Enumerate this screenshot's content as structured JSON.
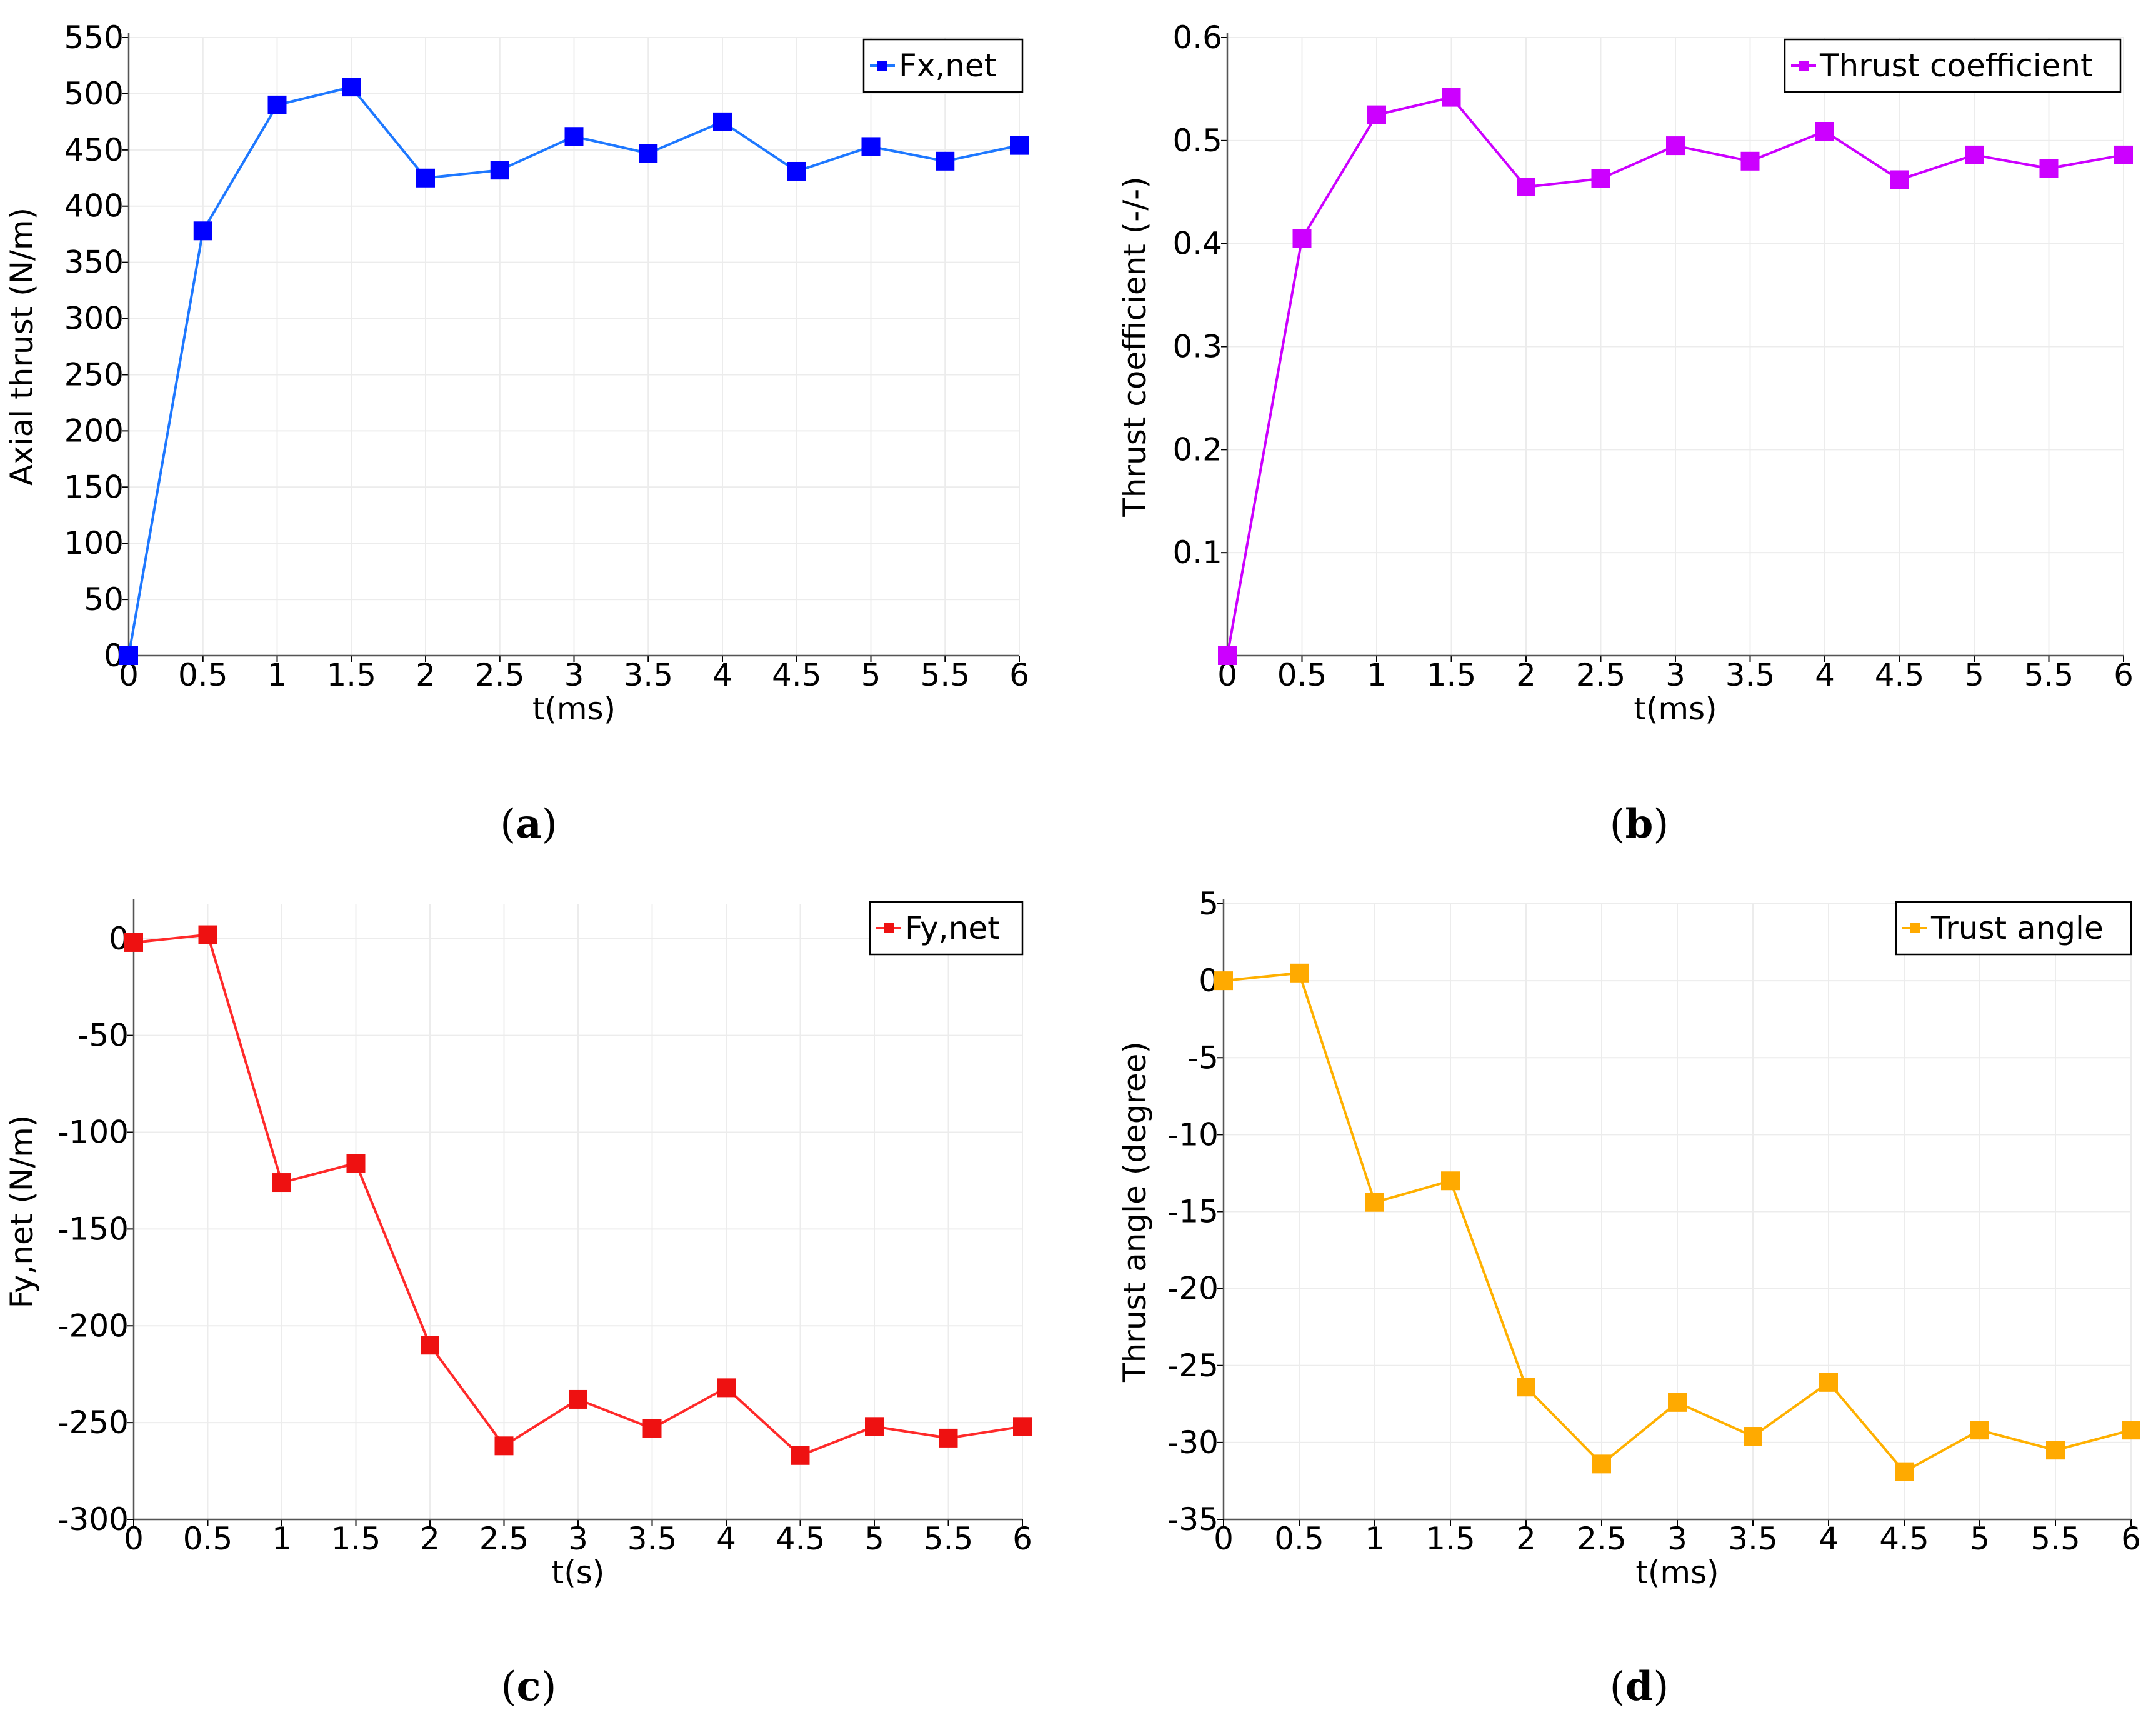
{
  "chart_data": [
    {
      "type": "line",
      "panel": "a",
      "caption": {
        "open": "(",
        "letter": "a",
        "close": ")"
      },
      "xlabel": "t(ms)",
      "ylabel": "Axial thrust (N/m)",
      "xlim": [
        0,
        6
      ],
      "ylim": [
        0,
        550
      ],
      "x_ticks": [
        "0",
        "0.5",
        "1",
        "1.5",
        "2",
        "2.5",
        "3",
        "3.5",
        "4",
        "4.5",
        "5",
        "5.5",
        "6"
      ],
      "y_ticks": [
        {
          "value": 0,
          "label": "0"
        },
        {
          "value": 50,
          "label": "50"
        },
        {
          "value": 100,
          "label": "100"
        },
        {
          "value": 150,
          "label": "150"
        },
        {
          "value": 200,
          "label": "200"
        },
        {
          "value": 250,
          "label": "250"
        },
        {
          "value": 300,
          "label": "300"
        },
        {
          "value": 350,
          "label": "350"
        },
        {
          "value": 400,
          "label": "400"
        },
        {
          "value": 450,
          "label": "450"
        },
        {
          "value": 500,
          "label": "500"
        },
        {
          "value": 550,
          "label": "550"
        }
      ],
      "grid": true,
      "legend_position": "top-right",
      "series": [
        {
          "name": "Fx,net",
          "color": "#0000ff",
          "line_color": "#1e78ff",
          "x": [
            0,
            0.5,
            1,
            1.5,
            2,
            2.5,
            3,
            3.5,
            4,
            4.5,
            5,
            5.5,
            6
          ],
          "values": [
            0,
            378,
            490,
            506,
            425,
            432,
            462,
            447,
            475,
            431,
            453,
            440,
            454
          ]
        }
      ]
    },
    {
      "type": "line",
      "panel": "b",
      "caption": {
        "open": "(",
        "letter": "b",
        "close": ")"
      },
      "xlabel": "t(ms)",
      "ylabel": "Thrust coefficient (-/-)",
      "xlim": [
        0,
        6
      ],
      "ylim": [
        0,
        0.6
      ],
      "x_ticks": [
        "0",
        "0.5",
        "1",
        "1.5",
        "2",
        "2.5",
        "3",
        "3.5",
        "4",
        "4.5",
        "5",
        "5.5",
        "6"
      ],
      "y_ticks": [
        {
          "value": 0.1,
          "label": "0.1"
        },
        {
          "value": 0.2,
          "label": "0.2"
        },
        {
          "value": 0.3,
          "label": "0.3"
        },
        {
          "value": 0.4,
          "label": "0.4"
        },
        {
          "value": 0.5,
          "label": "0.5"
        },
        {
          "value": 0.6,
          "label": "0.6"
        }
      ],
      "grid": true,
      "legend_position": "top-right",
      "series": [
        {
          "name": "Thrust coefficient",
          "color": "#cc00ff",
          "line_color": "#cc00ff",
          "x": [
            0,
            0.5,
            1,
            1.5,
            2,
            2.5,
            3,
            3.5,
            4,
            4.5,
            5,
            5.5,
            6
          ],
          "values": [
            0,
            0.405,
            0.525,
            0.542,
            0.455,
            0.463,
            0.495,
            0.48,
            0.509,
            0.462,
            0.486,
            0.473,
            0.486
          ]
        }
      ]
    },
    {
      "type": "line",
      "panel": "c",
      "caption": {
        "open": "(",
        "letter": "c",
        "close": ")"
      },
      "xlabel": "t(s)",
      "ylabel": "Fy,net (N/m)",
      "xlim": [
        0,
        6
      ],
      "ylim": [
        -300,
        18
      ],
      "x_ticks": [
        "0",
        "0.5",
        "1",
        "1.5",
        "2",
        "2.5",
        "3",
        "3.5",
        "4",
        "4.5",
        "5",
        "5.5",
        "6"
      ],
      "y_ticks": [
        {
          "value": 0,
          "label": "0"
        },
        {
          "value": -50,
          "label": "-50"
        },
        {
          "value": -100,
          "label": "-100"
        },
        {
          "value": -150,
          "label": "-150"
        },
        {
          "value": -200,
          "label": "-200"
        },
        {
          "value": -250,
          "label": "-250"
        },
        {
          "value": -300,
          "label": "-300"
        }
      ],
      "grid": true,
      "legend_position": "top-right",
      "series": [
        {
          "name": "Fy,net",
          "color": "#ee1111",
          "line_color": "#ff2a2a",
          "x": [
            0,
            0.5,
            1,
            1.5,
            2,
            2.5,
            3,
            3.5,
            4,
            4.5,
            5,
            5.5,
            6
          ],
          "values": [
            -2,
            2,
            -126,
            -116,
            -210,
            -262,
            -238,
            -253,
            -232,
            -267,
            -252,
            -258,
            -252
          ]
        }
      ]
    },
    {
      "type": "line",
      "panel": "d",
      "caption": {
        "open": "(",
        "letter": "d",
        "close": ")"
      },
      "xlabel": "t(ms)",
      "ylabel": "Thrust angle (degree)",
      "xlim": [
        0,
        6
      ],
      "ylim": [
        -35,
        5
      ],
      "x_ticks": [
        "0",
        "0.5",
        "1",
        "1.5",
        "2",
        "2.5",
        "3",
        "3.5",
        "4",
        "4.5",
        "5",
        "5.5",
        "6"
      ],
      "y_ticks": [
        {
          "value": 5,
          "label": "5"
        },
        {
          "value": 0,
          "label": "0"
        },
        {
          "value": -5,
          "label": "-5"
        },
        {
          "value": -10,
          "label": "-10"
        },
        {
          "value": -15,
          "label": "-15"
        },
        {
          "value": -20,
          "label": "-20"
        },
        {
          "value": -25,
          "label": "-25"
        },
        {
          "value": -30,
          "label": "-30"
        },
        {
          "value": -35,
          "label": "-35"
        }
      ],
      "grid": true,
      "legend_position": "top-right",
      "series": [
        {
          "name": "Trust angle",
          "color": "#ffaa00",
          "line_color": "#ffb000",
          "x": [
            0,
            0.5,
            1,
            1.5,
            2,
            2.5,
            3,
            3.5,
            4,
            4.5,
            5,
            5.5,
            6
          ],
          "values": [
            0,
            0.5,
            -14.4,
            -13,
            -26.4,
            -31.4,
            -27.4,
            -29.6,
            -26.1,
            -31.9,
            -29.2,
            -30.5,
            -29.2
          ]
        }
      ]
    }
  ]
}
